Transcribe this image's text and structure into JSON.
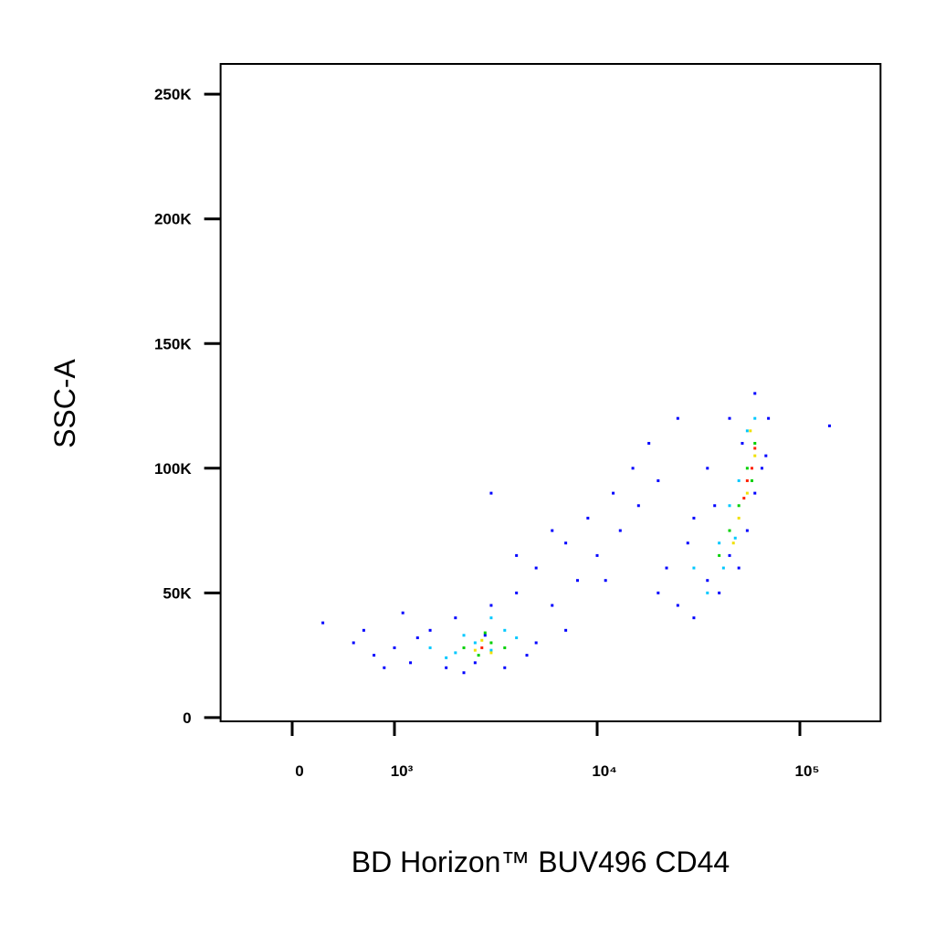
{
  "chart_data": {
    "type": "scatter",
    "x_label": "BD Horizon™ BUV496 CD44",
    "y_label": "SSC-A",
    "xscale": "biexponential",
    "xlim": [
      -700,
      250000
    ],
    "ylim": [
      -1500,
      262144
    ],
    "xticks": [
      0,
      {
        "value": 1000,
        "label": "10³"
      },
      {
        "value": 10000,
        "label": "10⁴"
      },
      {
        "value": 100000,
        "label": "10⁵"
      }
    ],
    "yticks": [
      0,
      {
        "value": 50000,
        "label": "50K"
      },
      {
        "value": 100000,
        "label": "100K"
      },
      {
        "value": 150000,
        "label": "150K"
      },
      {
        "value": 200000,
        "label": "200K"
      },
      {
        "value": 250000,
        "label": "250K"
      }
    ],
    "series": [
      {
        "color": "#0000ff",
        "x": [
          600,
          800,
          1000,
          1200,
          1500,
          1800,
          2000,
          2500,
          3000,
          3500,
          4000,
          5000,
          6000,
          7000,
          8000,
          1300,
          2200,
          2800,
          4500,
          900,
          700,
          300,
          1100,
          5000,
          7000,
          9000,
          12000,
          15000,
          10000,
          13000,
          18000,
          20000,
          25000,
          16000,
          11000,
          6000,
          4000,
          3000,
          20000,
          25000,
          30000,
          35000,
          40000,
          45000,
          50000,
          55000,
          60000,
          65000,
          70000,
          60000,
          45000,
          35000,
          30000,
          28000,
          140000,
          22000,
          38000,
          52000,
          68000
        ],
        "y": [
          30000,
          25000,
          28000,
          22000,
          35000,
          20000,
          40000,
          22000,
          45000,
          20000,
          50000,
          30000,
          45000,
          35000,
          55000,
          32000,
          18000,
          33000,
          25000,
          20000,
          35000,
          38000,
          42000,
          60000,
          70000,
          80000,
          90000,
          100000,
          65000,
          75000,
          110000,
          95000,
          120000,
          85000,
          55000,
          75000,
          65000,
          90000,
          50000,
          45000,
          40000,
          55000,
          50000,
          65000,
          60000,
          75000,
          90000,
          100000,
          120000,
          130000,
          120000,
          100000,
          80000,
          70000,
          117000,
          60000,
          85000,
          110000,
          105000
        ]
      },
      {
        "color": "#00c8ff",
        "x": [
          1500,
          2000,
          2500,
          3000,
          3500,
          4000,
          2200,
          1800,
          3000,
          30000,
          35000,
          40000,
          45000,
          50000,
          55000,
          60000,
          48000,
          42000
        ],
        "y": [
          28000,
          26000,
          30000,
          27000,
          35000,
          32000,
          33000,
          24000,
          40000,
          60000,
          50000,
          70000,
          85000,
          95000,
          115000,
          120000,
          72000,
          60000
        ]
      },
      {
        "color": "#00d000",
        "x": [
          2200,
          2600,
          3000,
          3500,
          2800,
          40000,
          45000,
          50000,
          55000,
          60000,
          58000
        ],
        "y": [
          28000,
          25000,
          30000,
          28000,
          34000,
          65000,
          75000,
          85000,
          100000,
          110000,
          95000
        ]
      },
      {
        "color": "#f0e000",
        "x": [
          2500,
          3000,
          2700,
          50000,
          55000,
          60000,
          57000,
          47000
        ],
        "y": [
          27000,
          26000,
          31000,
          80000,
          90000,
          105000,
          115000,
          70000
        ]
      },
      {
        "color": "#ff2000",
        "x": [
          2700,
          55000,
          58000,
          60000,
          53000
        ],
        "y": [
          28000,
          95000,
          100000,
          108000,
          88000
        ]
      }
    ]
  }
}
